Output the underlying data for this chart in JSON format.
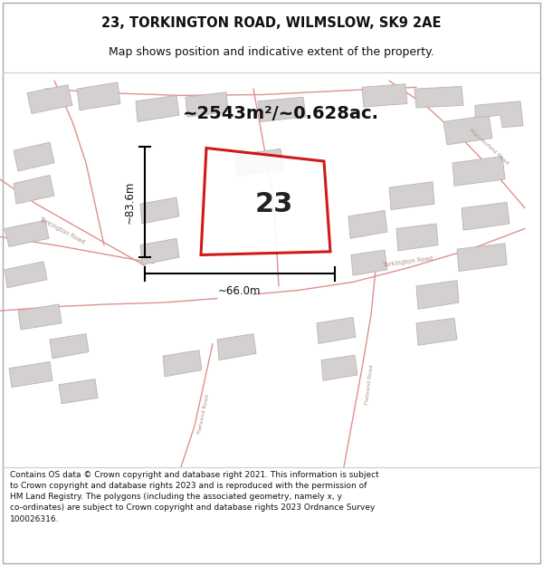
{
  "title_line1": "23, TORKINGTON ROAD, WILMSLOW, SK9 2AE",
  "title_line2": "Map shows position and indicative extent of the property.",
  "area_text": "~2543m²/~0.628ac.",
  "label_23": "23",
  "dim_height": "~83.6m",
  "dim_width": "~66.0m",
  "footer_lines": [
    "Contains OS data © Crown copyright and database right 2021. This information is subject",
    "to Crown copyright and database rights 2023 and is reproduced with the permission of",
    "HM Land Registry. The polygons (including the associated geometry, namely x, y",
    "co-ordinates) are subject to Crown copyright and database rights 2023 Ordnance Survey",
    "100026316."
  ],
  "map_bg": "#f2f0f0",
  "page_bg": "#ffffff",
  "red_plot_color": "#cc0000",
  "building_fill": "#d4d0d0",
  "building_ec": "#b8b4b4",
  "road_color": "#e09090",
  "road_label_color": "#b09090",
  "dim_color": "#111111",
  "title_color": "#111111",
  "title_fontsize": 10.5,
  "subtitle_fontsize": 9.0,
  "area_fontsize": 14.0,
  "label_fontsize": 22.0,
  "dim_fontsize": 8.5,
  "footer_fontsize": 6.5
}
